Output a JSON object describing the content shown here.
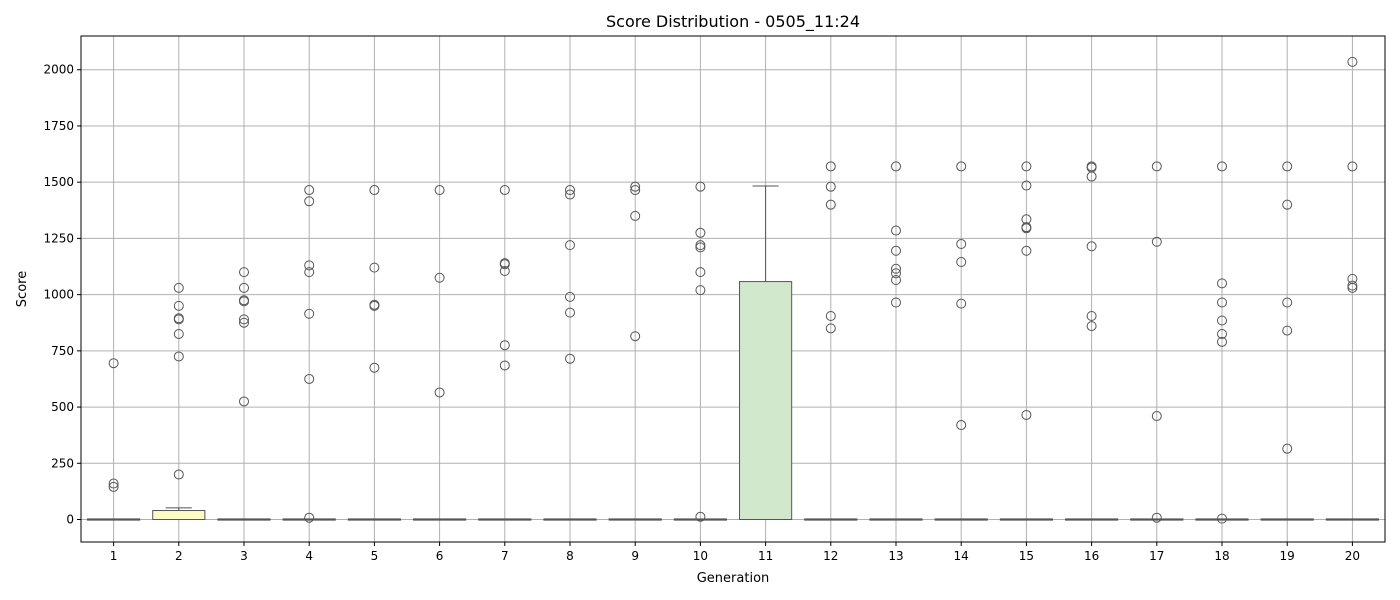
{
  "chart_data": {
    "type": "box",
    "title": "Score Distribution - 0505_11:24",
    "xlabel": "Generation",
    "ylabel": "Score",
    "ylim": [
      -100,
      2150
    ],
    "yticks": [
      0,
      250,
      500,
      750,
      1000,
      1250,
      1500,
      1750,
      2000
    ],
    "grid": true,
    "categories": [
      "1",
      "2",
      "3",
      "4",
      "5",
      "6",
      "7",
      "8",
      "9",
      "10",
      "11",
      "12",
      "13",
      "14",
      "15",
      "16",
      "17",
      "18",
      "19",
      "20"
    ],
    "boxes": [
      {
        "category": "1",
        "q1": 0,
        "median": 0,
        "q3": 0,
        "whisker_low": 0,
        "whisker_high": 0,
        "color": "#e8ecf8",
        "outliers": [
          695,
          160,
          145
        ]
      },
      {
        "category": "2",
        "q1": 0,
        "median": 0,
        "q3": 40,
        "whisker_low": 0,
        "whisker_high": 52,
        "color": "#fbfbc3",
        "outliers": [
          1030,
          950,
          895,
          890,
          825,
          725,
          200
        ]
      },
      {
        "category": "3",
        "q1": 0,
        "median": 0,
        "q3": 0,
        "whisker_low": 0,
        "whisker_high": 0,
        "color": "#e8ecf8",
        "outliers": [
          1100,
          1030,
          975,
          970,
          890,
          875,
          525
        ]
      },
      {
        "category": "4",
        "q1": 0,
        "median": 0,
        "q3": 0,
        "whisker_low": 0,
        "whisker_high": 0,
        "color": "#e8ecf8",
        "outliers": [
          1465,
          1415,
          1130,
          1100,
          915,
          625,
          8
        ]
      },
      {
        "category": "5",
        "q1": 0,
        "median": 0,
        "q3": 0,
        "whisker_low": 0,
        "whisker_high": 0,
        "color": "#e8ecf8",
        "outliers": [
          1465,
          1120,
          955,
          950,
          675
        ]
      },
      {
        "category": "6",
        "q1": 0,
        "median": 0,
        "q3": 0,
        "whisker_low": 0,
        "whisker_high": 0,
        "color": "#e8ecf8",
        "outliers": [
          1465,
          1075,
          565
        ]
      },
      {
        "category": "7",
        "q1": 0,
        "median": 0,
        "q3": 0,
        "whisker_low": 0,
        "whisker_high": 0,
        "color": "#e8ecf8",
        "outliers": [
          1465,
          1140,
          1135,
          1105,
          775,
          685
        ]
      },
      {
        "category": "8",
        "q1": 0,
        "median": 0,
        "q3": 0,
        "whisker_low": 0,
        "whisker_high": 0,
        "color": "#e8ecf8",
        "outliers": [
          1465,
          1445,
          1220,
          990,
          920,
          715
        ]
      },
      {
        "category": "9",
        "q1": 0,
        "median": 0,
        "q3": 0,
        "whisker_low": 0,
        "whisker_high": 0,
        "color": "#e8ecf8",
        "outliers": [
          1480,
          1465,
          1350,
          815
        ]
      },
      {
        "category": "10",
        "q1": 0,
        "median": 0,
        "q3": 0,
        "whisker_low": 0,
        "whisker_high": 0,
        "color": "#e8ecf8",
        "outliers": [
          1480,
          1275,
          1220,
          1210,
          1100,
          1020,
          12
        ]
      },
      {
        "category": "11",
        "q1": 0,
        "median": 0,
        "q3": 1058,
        "whisker_low": 0,
        "whisker_high": 1483,
        "color": "#d2e8cc",
        "outliers": []
      },
      {
        "category": "12",
        "q1": 0,
        "median": 0,
        "q3": 0,
        "whisker_low": 0,
        "whisker_high": 0,
        "color": "#e8ecf8",
        "outliers": [
          1570,
          1480,
          1400,
          905,
          850
        ]
      },
      {
        "category": "13",
        "q1": 0,
        "median": 0,
        "q3": 0,
        "whisker_low": 0,
        "whisker_high": 0,
        "color": "#e8ecf8",
        "outliers": [
          1570,
          1285,
          1195,
          1115,
          1095,
          1065,
          965
        ]
      },
      {
        "category": "14",
        "q1": 0,
        "median": 0,
        "q3": 0,
        "whisker_low": 0,
        "whisker_high": 0,
        "color": "#e8ecf8",
        "outliers": [
          1570,
          1225,
          1145,
          960,
          420
        ]
      },
      {
        "category": "15",
        "q1": 0,
        "median": 0,
        "q3": 0,
        "whisker_low": 0,
        "whisker_high": 0,
        "color": "#e8ecf8",
        "outliers": [
          1570,
          1485,
          1335,
          1300,
          1295,
          1195,
          465
        ]
      },
      {
        "category": "16",
        "q1": 0,
        "median": 0,
        "q3": 0,
        "whisker_low": 0,
        "whisker_high": 0,
        "color": "#e8ecf8",
        "outliers": [
          1570,
          1565,
          1525,
          1215,
          905,
          860
        ]
      },
      {
        "category": "17",
        "q1": 0,
        "median": 0,
        "q3": 0,
        "whisker_low": 0,
        "whisker_high": 0,
        "color": "#e8ecf8",
        "outliers": [
          1570,
          1235,
          460,
          8
        ]
      },
      {
        "category": "18",
        "q1": 0,
        "median": 0,
        "q3": 0,
        "whisker_low": 0,
        "whisker_high": 0,
        "color": "#e8ecf8",
        "outliers": [
          1570,
          1050,
          965,
          885,
          825,
          790,
          4
        ]
      },
      {
        "category": "19",
        "q1": 0,
        "median": 0,
        "q3": 0,
        "whisker_low": 0,
        "whisker_high": 0,
        "color": "#e8ecf8",
        "outliers": [
          1570,
          1400,
          965,
          840,
          315
        ]
      },
      {
        "category": "20",
        "q1": 0,
        "median": 0,
        "q3": 0,
        "whisker_low": 0,
        "whisker_high": 0,
        "color": "#e8ecf8",
        "outliers": [
          2035,
          1570,
          1070,
          1040,
          1030
        ]
      }
    ],
    "colors": {
      "grid": "#b0b0b0",
      "box_edge": "#555555",
      "flier_edge": "#555555",
      "axes": "#000000"
    }
  }
}
